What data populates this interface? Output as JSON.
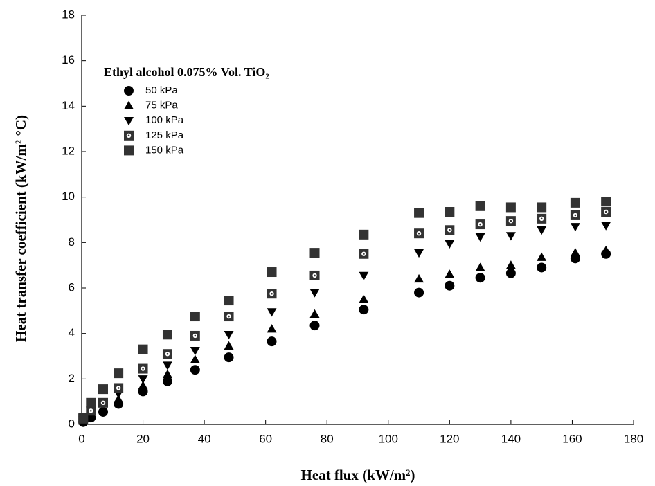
{
  "chart_data": {
    "type": "scatter",
    "title": "Ethyl alcohol  0.075% Vol. TiO₂",
    "x_label": "Heat flux (kW/m²)",
    "y_label": "Heat transfer coefficient (kW/m² °C)",
    "x": [
      0.5,
      3,
      7,
      12,
      20,
      28,
      37,
      48,
      62,
      76,
      92,
      110,
      120,
      130,
      140,
      150,
      161,
      171
    ],
    "series": [
      {
        "name": "50 kPa",
        "marker": "circle",
        "color": "#000000",
        "values": [
          0.1,
          0.3,
          0.55,
          0.9,
          1.45,
          1.9,
          2.4,
          2.95,
          3.65,
          4.35,
          5.05,
          5.8,
          6.1,
          6.45,
          6.65,
          6.9,
          7.3,
          7.5
        ]
      },
      {
        "name": "75 kPa",
        "marker": "triangle-up",
        "color": "#000000",
        "values": [
          0.15,
          0.35,
          0.65,
          1.1,
          1.7,
          2.2,
          2.85,
          3.45,
          4.2,
          4.85,
          5.5,
          6.4,
          6.6,
          6.9,
          7.0,
          7.35,
          7.55,
          7.65
        ]
      },
      {
        "name": "100 kPa",
        "marker": "triangle-down",
        "color": "#000000",
        "values": [
          0.2,
          0.45,
          0.8,
          1.35,
          2.0,
          2.6,
          3.25,
          3.95,
          4.95,
          5.8,
          6.55,
          7.55,
          7.95,
          8.25,
          8.3,
          8.55,
          8.7,
          8.75
        ]
      },
      {
        "name": "125 kPa",
        "marker": "dotted-square",
        "color": "#333333",
        "values": [
          0.25,
          0.6,
          0.95,
          1.6,
          2.45,
          3.1,
          3.9,
          4.75,
          5.75,
          6.55,
          7.5,
          8.4,
          8.55,
          8.8,
          8.95,
          9.05,
          9.2,
          9.35
        ]
      },
      {
        "name": "150 kPa",
        "marker": "square",
        "color": "#333333",
        "values": [
          0.3,
          0.95,
          1.55,
          2.25,
          3.3,
          3.95,
          4.75,
          5.45,
          6.7,
          7.55,
          8.35,
          9.3,
          9.35,
          9.6,
          9.55,
          9.55,
          9.75,
          9.8
        ]
      }
    ],
    "xlim": [
      0,
      180
    ],
    "xticks": [
      0,
      20,
      40,
      60,
      80,
      100,
      120,
      140,
      160,
      180
    ],
    "ylim": [
      0,
      18
    ],
    "yticks": [
      0,
      2,
      4,
      6,
      8,
      10,
      12,
      14,
      16,
      18
    ],
    "legend": "upper left",
    "grid": false
  }
}
